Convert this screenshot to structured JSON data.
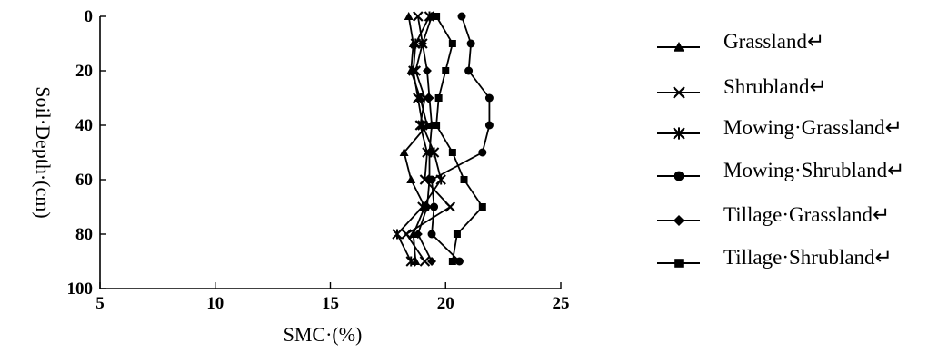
{
  "chart_data": {
    "type": "line",
    "orientation": "depth-profile",
    "xlabel": "SMC·(%)",
    "ylabel": "Soil·Depth·(cm)",
    "xlim": [
      5,
      25
    ],
    "ylim": [
      0,
      100
    ],
    "y_inverted": true,
    "x_ticks": [
      "5",
      "10",
      "15",
      "20",
      "25"
    ],
    "y_ticks": [
      "0",
      "20",
      "40",
      "60",
      "80",
      "100"
    ],
    "legend_position": "right",
    "series": [
      {
        "name": "Grassland↵",
        "marker": "triangle",
        "depth": [
          0,
          10,
          20,
          30,
          40,
          50,
          60,
          70,
          80,
          90
        ],
        "smc": [
          18.4,
          18.6,
          18.5,
          18.9,
          19.2,
          18.2,
          18.5,
          19.1,
          18.6,
          18.7
        ]
      },
      {
        "name": "Shrubland↵",
        "marker": "x",
        "depth": [
          0,
          10,
          20,
          30,
          40,
          50,
          60,
          70,
          80,
          90
        ],
        "smc": [
          18.8,
          19.0,
          18.7,
          19.1,
          18.9,
          19.2,
          19.1,
          20.2,
          18.3,
          19.1
        ]
      },
      {
        "name": "Mowing·Grassland↵",
        "marker": "star",
        "depth": [
          0,
          10,
          20,
          30,
          40,
          50,
          60,
          70,
          80,
          90
        ],
        "smc": [
          19.3,
          18.7,
          18.6,
          18.8,
          19.0,
          19.5,
          19.8,
          19.0,
          17.9,
          18.5
        ]
      },
      {
        "name": "Mowing·Shrubland↵",
        "marker": "circle",
        "depth": [
          0,
          10,
          20,
          30,
          40,
          50,
          60,
          70,
          80,
          90
        ],
        "smc": [
          20.7,
          21.1,
          21.0,
          21.9,
          21.9,
          21.6,
          19.4,
          19.5,
          19.4,
          20.6
        ]
      },
      {
        "name": "Tillage·Grassland↵",
        "marker": "diamond",
        "depth": [
          0,
          10,
          20,
          30,
          40,
          50,
          60,
          70,
          80,
          90
        ],
        "smc": [
          19.4,
          19.0,
          19.2,
          19.3,
          19.4,
          19.3,
          19.3,
          19.2,
          18.8,
          19.4
        ]
      },
      {
        "name": "Tillage·Shrubland↵",
        "marker": "square",
        "depth": [
          0,
          10,
          20,
          30,
          40,
          50,
          60,
          70,
          80,
          90
        ],
        "smc": [
          19.6,
          20.3,
          20.0,
          19.7,
          19.6,
          20.3,
          20.8,
          21.6,
          20.5,
          20.3
        ]
      }
    ]
  },
  "colors": {
    "ink": "#000000",
    "spellcheck_underline": "#e03030"
  }
}
